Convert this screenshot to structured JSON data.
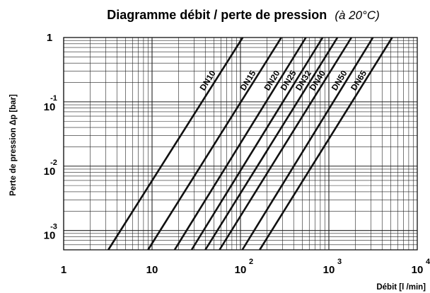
{
  "chart_data": {
    "type": "line",
    "title": "Diagramme débit / perte de pression",
    "subtitle": "(à 20°C)",
    "xlabel": "Débit [l /min]",
    "ylabel": "Perte de pression Δp [bar]",
    "xscale": "log",
    "yscale": "log",
    "xlim": [
      1,
      10000
    ],
    "ylim": [
      0.0005,
      1
    ],
    "grid": true,
    "x_tick_labels": [
      {
        "value": 1,
        "base": "1",
        "exp": ""
      },
      {
        "value": 10,
        "base": "10",
        "exp": ""
      },
      {
        "value": 100,
        "base": "10",
        "exp": "2"
      },
      {
        "value": 1000,
        "base": "10",
        "exp": "3"
      },
      {
        "value": 10000,
        "base": "10",
        "exp": "4"
      }
    ],
    "y_tick_labels": [
      {
        "value": 1,
        "base": "1",
        "exp": ""
      },
      {
        "value": 0.1,
        "base": "10",
        "exp": "-1"
      },
      {
        "value": 0.01,
        "base": "10",
        "exp": "-2"
      },
      {
        "value": 0.001,
        "base": "10",
        "exp": "-3"
      }
    ],
    "series": [
      {
        "name": "DN10",
        "x": [
          3.2,
          106
        ],
        "y": [
          0.0005,
          1
        ],
        "label_at": [
          42,
          0.15
        ]
      },
      {
        "name": "DN15",
        "x": [
          9,
          290
        ],
        "y": [
          0.0005,
          1
        ],
        "label_at": [
          120,
          0.15
        ]
      },
      {
        "name": "DN20",
        "x": [
          18,
          550
        ],
        "y": [
          0.0005,
          1
        ],
        "label_at": [
          225,
          0.15
        ]
      },
      {
        "name": "DN25",
        "x": [
          28,
          850
        ],
        "y": [
          0.0005,
          1
        ],
        "label_at": [
          345,
          0.15
        ]
      },
      {
        "name": "DN32",
        "x": [
          40,
          1250
        ],
        "y": [
          0.0005,
          1
        ],
        "label_at": [
          510,
          0.15
        ]
      },
      {
        "name": "DN40",
        "x": [
          58,
          1800
        ],
        "y": [
          0.0005,
          1
        ],
        "label_at": [
          735,
          0.15
        ]
      },
      {
        "name": "DN50",
        "x": [
          105,
          3150
        ],
        "y": [
          0.0005,
          1
        ],
        "label_at": [
          1300,
          0.15
        ]
      },
      {
        "name": "DN65",
        "x": [
          165,
          5200
        ],
        "y": [
          0.0005,
          1
        ],
        "label_at": [
          2150,
          0.15
        ]
      }
    ]
  }
}
